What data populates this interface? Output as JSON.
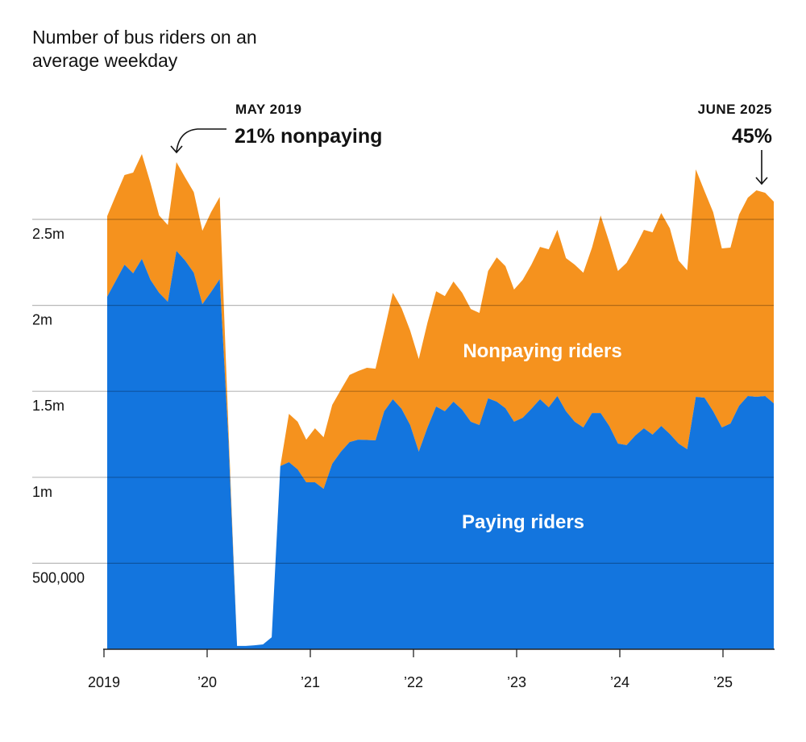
{
  "chart_data": {
    "type": "area",
    "stacked": true,
    "title": "Number of bus riders on an average weekday",
    "x_start": "2019-01",
    "x_end": "2025-06",
    "x_interval": "month",
    "x_tick_labels": [
      "2019",
      "’20",
      "’21",
      "’22",
      "’23",
      "’24",
      "’25"
    ],
    "y_tick_labels": [
      "500,000",
      "1m",
      "1.5m",
      "2m",
      "2.5m"
    ],
    "y_ticks": [
      500000,
      1000000,
      1500000,
      2000000,
      2500000
    ],
    "ylim": [
      0,
      2500000
    ],
    "grid": true,
    "colors": {
      "paying": "#1375DE",
      "nonpaying": "#F5921E"
    },
    "series": [
      {
        "name": "Paying riders",
        "values": [
          2050000,
          2143000,
          2237000,
          2186000,
          2270000,
          2148000,
          2073000,
          2021000,
          2317000,
          2261000,
          2190000,
          2007000,
          2078000,
          2153000,
          1219000,
          19000,
          19000,
          23000,
          28000,
          70000,
          1065000,
          1088000,
          1046000,
          971000,
          971000,
          933000,
          1079000,
          1149000,
          1205000,
          1219000,
          1217000,
          1215000,
          1384000,
          1454000,
          1398000,
          1304000,
          1149000,
          1290000,
          1412000,
          1384000,
          1440000,
          1393000,
          1323000,
          1304000,
          1459000,
          1440000,
          1402000,
          1323000,
          1346000,
          1398000,
          1454000,
          1407000,
          1473000,
          1384000,
          1323000,
          1290000,
          1374000,
          1374000,
          1299000,
          1196000,
          1187000,
          1243000,
          1285000,
          1248000,
          1299000,
          1252000,
          1196000,
          1163000,
          1468000,
          1463000,
          1384000,
          1290000,
          1313000,
          1416000,
          1473000,
          1468000,
          1473000,
          1430000
        ]
      },
      {
        "name": "Nonpaying riders",
        "total_values": [
          2519000,
          2640000,
          2758000,
          2772000,
          2880000,
          2711000,
          2523000,
          2467000,
          2833000,
          2744000,
          2659000,
          2434000,
          2542000,
          2631000,
          1290000,
          19000,
          19000,
          23000,
          28000,
          70000,
          1065000,
          1369000,
          1323000,
          1219000,
          1285000,
          1233000,
          1421000,
          1510000,
          1595000,
          1618000,
          1637000,
          1632000,
          1850000,
          2073000,
          1984000,
          1853000,
          1688000,
          1900000,
          2082000,
          2054000,
          2139000,
          2073000,
          1979000,
          1956000,
          2200000,
          2279000,
          2228000,
          2092000,
          2148000,
          2237000,
          2340000,
          2326000,
          2439000,
          2275000,
          2237000,
          2190000,
          2336000,
          2523000,
          2368000,
          2200000,
          2247000,
          2340000,
          2439000,
          2425000,
          2537000,
          2448000,
          2261000,
          2204000,
          2791000,
          2664000,
          2542000,
          2331000,
          2336000,
          2528000,
          2626000,
          2669000,
          2655000,
          2603000
        ]
      }
    ],
    "annotations": [
      {
        "date_label": "MAY 2019",
        "text": "21% nonpaying"
      },
      {
        "date_label": "JUNE 2025",
        "text": "45%"
      }
    ]
  }
}
